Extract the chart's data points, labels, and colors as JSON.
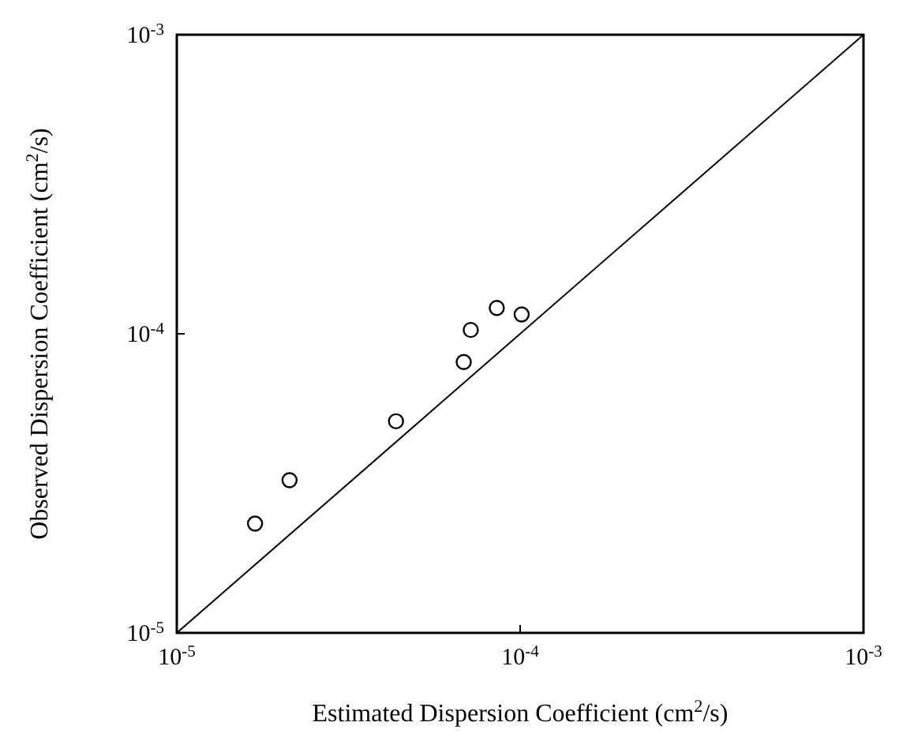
{
  "chart_data": {
    "type": "scatter",
    "xlabel": "Estimated Dispersion Coefficient (cm$^{2}$/s)",
    "ylabel": "Observed Dispersion Coefficient (cm$^{2}$/s)",
    "log": "xy",
    "xlim": [
      1e-05,
      0.001
    ],
    "ylim": [
      1e-05,
      0.001
    ],
    "xticks": [
      {
        "value": 1e-05,
        "label": "10$^{-5}$"
      },
      {
        "value": 0.0001,
        "label": "10$^{-4}$"
      },
      {
        "value": 0.001,
        "label": "10$^{-3}$"
      }
    ],
    "yticks": [
      {
        "value": 1e-05,
        "label": "10$^{-5}$"
      },
      {
        "value": 0.0001,
        "label": "10$^{-4}$"
      },
      {
        "value": 0.001,
        "label": "10$^{-3}$"
      }
    ],
    "grid": false,
    "series": [
      {
        "color": "#000000",
        "marker": "circle",
        "x": [
          1.69e-05,
          2.13e-05,
          4.35e-05,
          6.85e-05,
          7.18e-05,
          8.55e-05,
          0.000101
        ],
        "values": [
          2.32e-05,
          3.24e-05,
          5.1e-05,
          8.05e-05,
          0.000103,
          0.000122,
          0.000116
        ]
      },
      {
        "type": "line",
        "color": "#000000",
        "line_style": "solid",
        "marker": "none",
        "x": [
          1e-05,
          0.001
        ],
        "values": [
          1e-05,
          0.001
        ]
      }
    ]
  }
}
